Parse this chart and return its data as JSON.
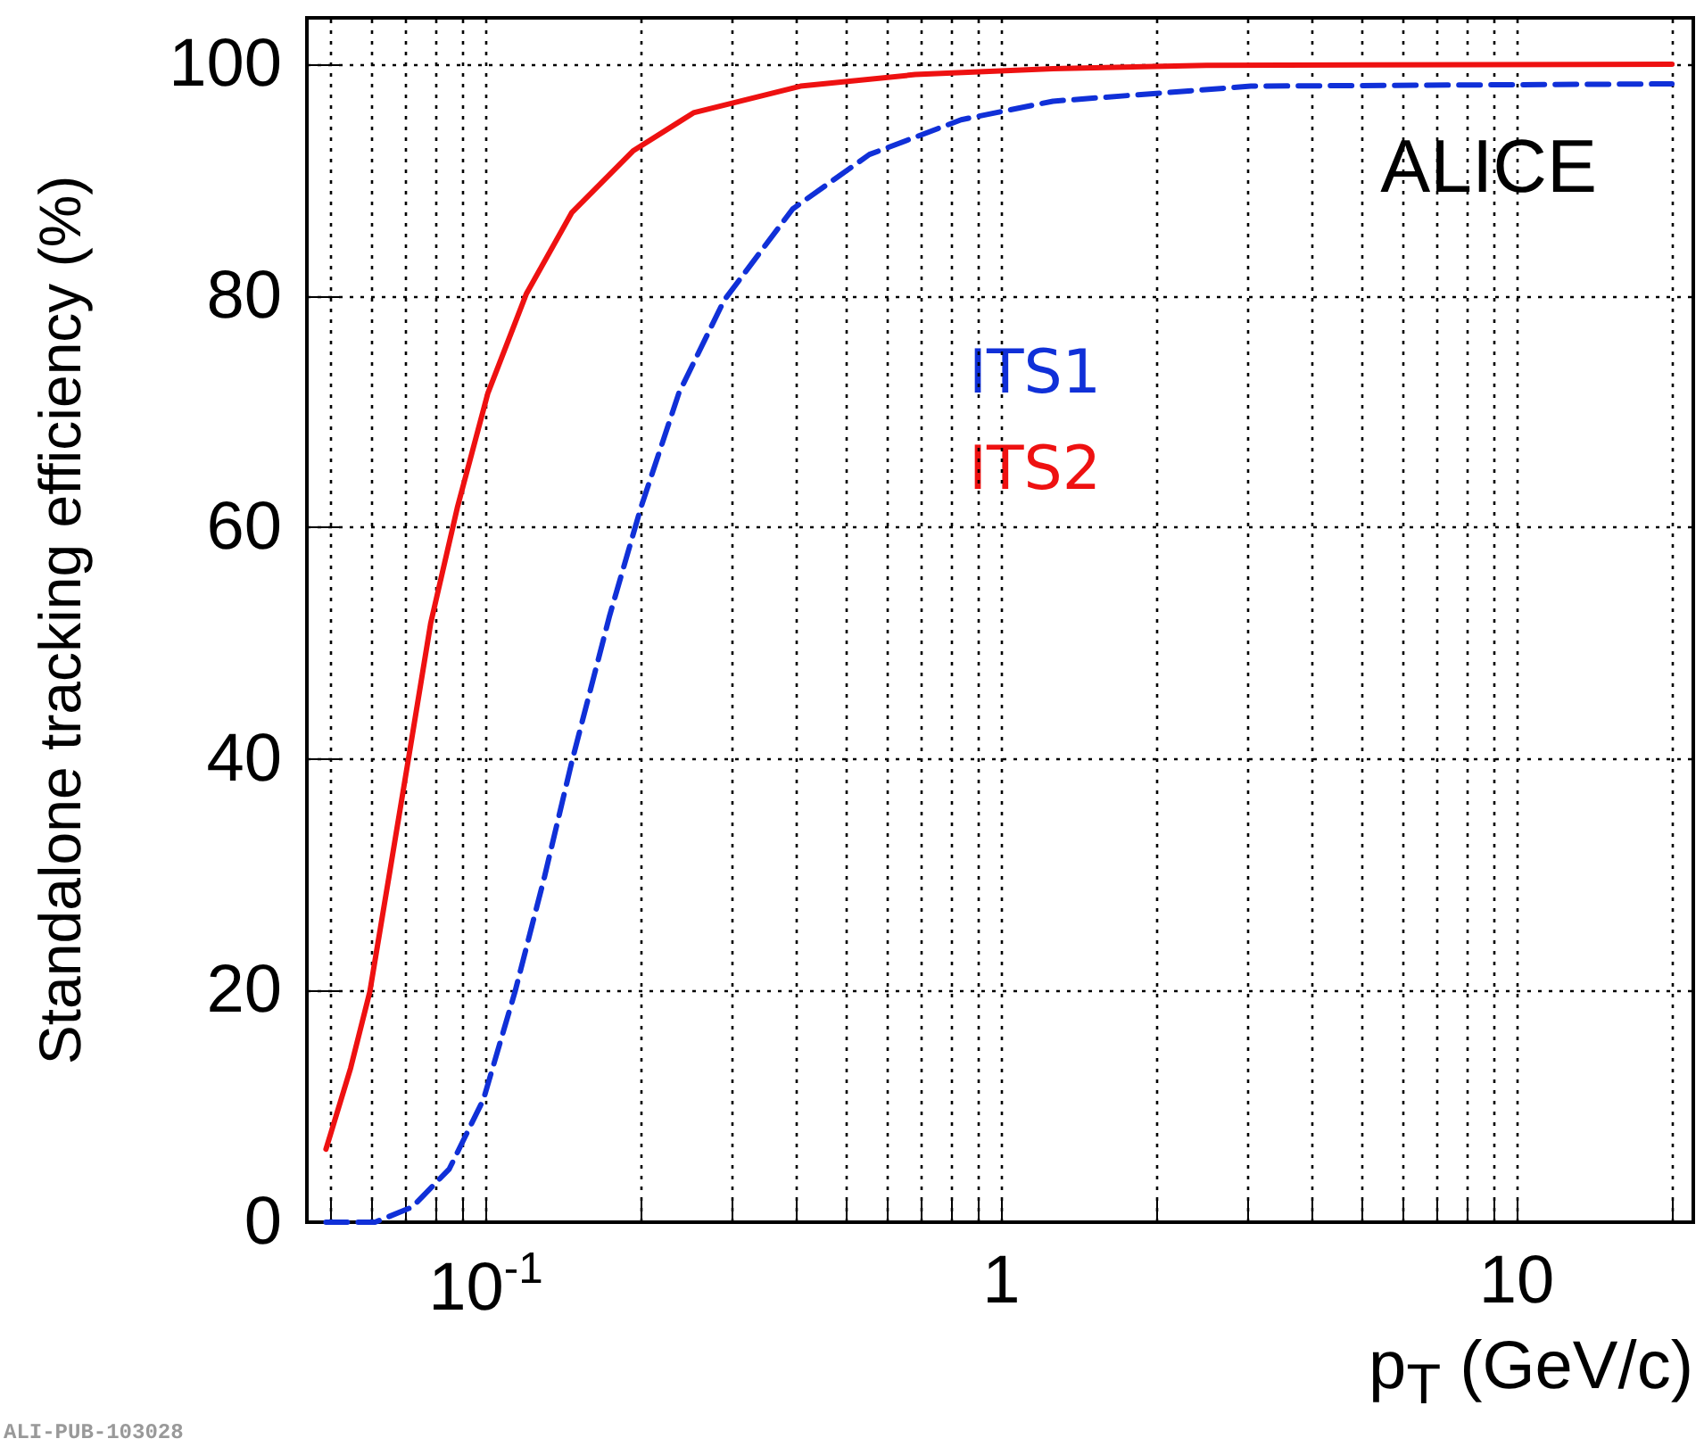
{
  "chart_data": {
    "type": "line",
    "xlabel": "p$_{T}$ (GeV/c)",
    "ylabel": "Standalone tracking efficiency (%)",
    "log": "x",
    "xlim": [
      0.045,
      22
    ],
    "ylim": [
      0,
      104
    ],
    "xticks": [
      {
        "value": 0.05,
        "label": null
      },
      {
        "value": 0.06,
        "label": null
      },
      {
        "value": 0.07,
        "label": null
      },
      {
        "value": 0.08,
        "label": null
      },
      {
        "value": 0.09,
        "label": null
      },
      {
        "value": 0.1,
        "label": "10$^{-1}$"
      },
      {
        "value": 0.2,
        "label": null
      },
      {
        "value": 0.3,
        "label": null
      },
      {
        "value": 0.4,
        "label": null
      },
      {
        "value": 0.5,
        "label": null
      },
      {
        "value": 0.6,
        "label": null
      },
      {
        "value": 0.7,
        "label": null
      },
      {
        "value": 0.8,
        "label": null
      },
      {
        "value": 0.9,
        "label": null
      },
      {
        "value": 1,
        "label": "1"
      },
      {
        "value": 2,
        "label": null
      },
      {
        "value": 3,
        "label": null
      },
      {
        "value": 4,
        "label": null
      },
      {
        "value": 5,
        "label": null
      },
      {
        "value": 6,
        "label": null
      },
      {
        "value": 7,
        "label": null
      },
      {
        "value": 8,
        "label": null
      },
      {
        "value": 9,
        "label": null
      },
      {
        "value": 10,
        "label": "10"
      },
      {
        "value": 20,
        "label": null
      }
    ],
    "yticks": [
      0,
      20,
      40,
      60,
      80,
      100
    ],
    "grid": true,
    "legend": "center",
    "marker": "none",
    "series": [
      {
        "name": "ITS1",
        "color": "#1030d8",
        "line_style": "dashed",
        "x": [
          0.049,
          0.061,
          0.072,
          0.085,
          0.099,
          0.114,
          0.13,
          0.147,
          0.174,
          0.2,
          0.237,
          0.29,
          0.394,
          0.555,
          0.836,
          1.26,
          3.05,
          20
        ],
        "values": [
          0,
          0,
          1.3,
          4.6,
          10.6,
          19.9,
          29.8,
          39.8,
          52.4,
          61.7,
          71.6,
          79.6,
          87.5,
          92.2,
          95.2,
          96.8,
          98.1,
          98.3
        ]
      },
      {
        "name": "ITS2",
        "color": "#ee1111",
        "line_style": "solid",
        "x": [
          0.049,
          0.0547,
          0.0596,
          0.0649,
          0.0707,
          0.0782,
          0.0881,
          0.101,
          0.12,
          0.147,
          0.193,
          0.253,
          0.408,
          0.681,
          1.26,
          2.5,
          20
        ],
        "values": [
          6.3,
          13.3,
          19.9,
          29.8,
          39.8,
          51.7,
          61.7,
          71.6,
          80.2,
          87.2,
          92.5,
          95.8,
          98.1,
          99.1,
          99.6,
          99.9,
          100
        ]
      }
    ],
    "annotations": [
      "ALICE",
      "ALI-PUB-103028"
    ]
  }
}
